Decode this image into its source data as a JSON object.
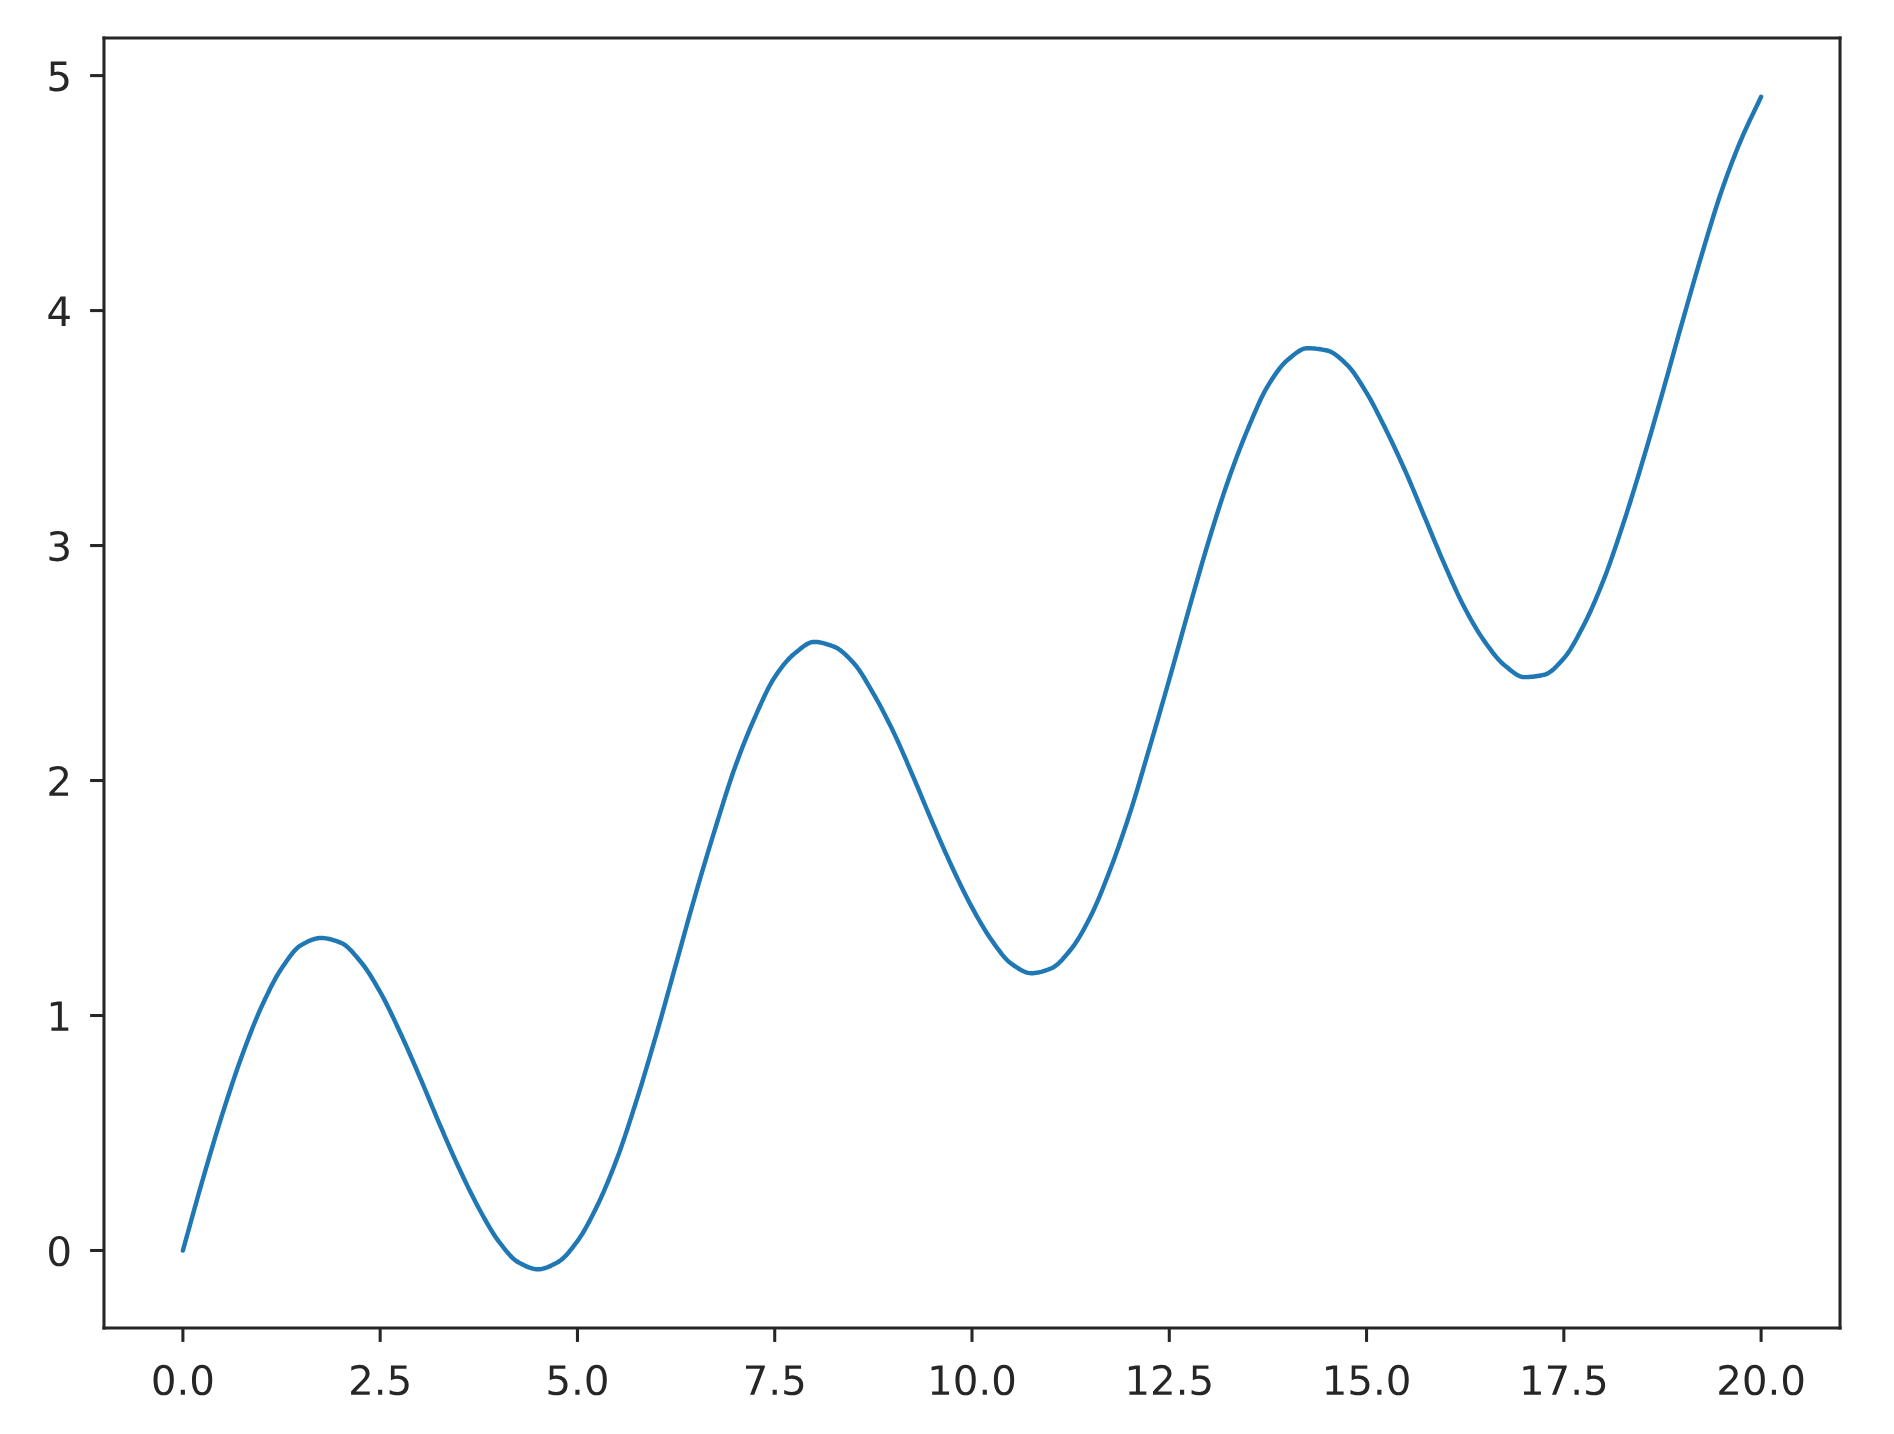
{
  "chart_data": {
    "type": "line",
    "x": [
      0,
      0.25,
      0.5,
      0.75,
      1,
      1.25,
      1.5,
      1.75,
      2,
      2.25,
      2.5,
      2.75,
      3,
      3.25,
      3.5,
      3.75,
      4,
      4.25,
      4.5,
      4.75,
      5,
      5.25,
      5.5,
      5.75,
      6,
      6.25,
      6.5,
      6.75,
      7,
      7.25,
      7.5,
      7.75,
      8,
      8.25,
      8.5,
      8.75,
      9,
      9.25,
      9.5,
      9.75,
      10,
      10.25,
      10.5,
      10.75,
      11,
      11.25,
      11.5,
      11.75,
      12,
      12.25,
      12.5,
      12.75,
      13,
      13.25,
      13.5,
      13.75,
      14,
      14.25,
      14.5,
      14.75,
      15,
      15.25,
      15.5,
      15.75,
      16,
      16.25,
      16.5,
      16.75,
      17,
      17.25,
      17.5,
      17.75,
      18,
      18.25,
      18.5,
      18.75,
      19,
      19.25,
      19.5,
      19.75,
      20
    ],
    "series": [
      {
        "color": "#1f77b4",
        "line_style": "solid",
        "values": [
          0.0,
          0.3,
          0.58,
          0.83,
          1.04,
          1.2,
          1.3,
          1.33,
          1.31,
          1.23,
          1.1,
          0.93,
          0.74,
          0.54,
          0.35,
          0.18,
          0.04,
          -0.05,
          -0.08,
          -0.05,
          0.04,
          0.19,
          0.39,
          0.64,
          0.92,
          1.22,
          1.52,
          1.8,
          2.06,
          2.27,
          2.44,
          2.54,
          2.59,
          2.57,
          2.5,
          2.37,
          2.21,
          2.02,
          1.82,
          1.63,
          1.46,
          1.32,
          1.22,
          1.18,
          1.2,
          1.28,
          1.42,
          1.62,
          1.86,
          2.14,
          2.43,
          2.73,
          3.02,
          3.28,
          3.5,
          3.68,
          3.79,
          3.84,
          3.83,
          3.77,
          3.65,
          3.49,
          3.31,
          3.11,
          2.91,
          2.73,
          2.59,
          2.49,
          2.44,
          2.45,
          2.52,
          2.66,
          2.85,
          3.09,
          3.36,
          3.65,
          3.95,
          4.24,
          4.51,
          4.73,
          4.91
        ]
      }
    ],
    "xlim": [
      -1,
      21
    ],
    "ylim": [
      -0.33,
      5.16
    ],
    "xticks": [
      {
        "value": 0,
        "label": "0.0"
      },
      {
        "value": 2.5,
        "label": "2.5"
      },
      {
        "value": 5,
        "label": "5.0"
      },
      {
        "value": 7.5,
        "label": "7.5"
      },
      {
        "value": 10,
        "label": "10.0"
      },
      {
        "value": 12.5,
        "label": "12.5"
      },
      {
        "value": 15,
        "label": "15.0"
      },
      {
        "value": 17.5,
        "label": "17.5"
      },
      {
        "value": 20,
        "label": "20.0"
      }
    ],
    "yticks": [
      0,
      1,
      2,
      3,
      4,
      5
    ]
  }
}
